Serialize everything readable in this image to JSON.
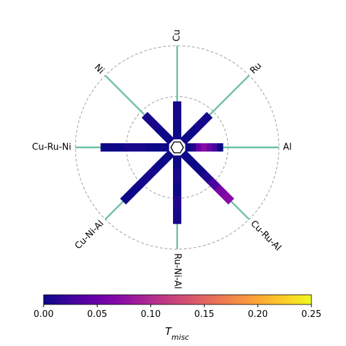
{
  "chart_data": {
    "type": "radial-bar",
    "axes": [
      {
        "label": "Cu",
        "angle_deg": 90,
        "bar_extent": 0.45,
        "tmisc": [
          0.0,
          0.005
        ]
      },
      {
        "label": "Ru",
        "angle_deg": 45,
        "bar_extent": 0.45,
        "tmisc": [
          0.0,
          0.005
        ]
      },
      {
        "label": "Al",
        "angle_deg": 0,
        "bar_extent": 0.45,
        "tmisc": [
          0.0,
          0.01,
          0.05,
          0.07,
          0.05,
          0.03,
          0.0
        ]
      },
      {
        "label": "Cu-Ru-Al",
        "angle_deg": -45,
        "bar_extent": 0.75,
        "tmisc": [
          0.0,
          0.0,
          0.0,
          0.01,
          0.03,
          0.06,
          0.07
        ]
      },
      {
        "label": "Ru-Ni-Al",
        "angle_deg": -90,
        "bar_extent": 0.75,
        "tmisc": [
          0.0,
          0.005,
          0.0,
          0.01,
          0.005
        ]
      },
      {
        "label": "Cu-Ni-Al",
        "angle_deg": -135,
        "bar_extent": 0.75,
        "tmisc": [
          0.0,
          0.005,
          0.0
        ]
      },
      {
        "label": "Cu-Ru-Ni",
        "angle_deg": 180,
        "bar_extent": 0.75,
        "tmisc": [
          0.0,
          0.005,
          0.0
        ]
      },
      {
        "label": "Ni",
        "angle_deg": 135,
        "bar_extent": 0.45,
        "tmisc": [
          0.0,
          0.005
        ]
      }
    ],
    "rings": [
      0.5,
      1.0
    ],
    "colorbar": {
      "label_base": "T",
      "label_sub": "misc",
      "min": 0.0,
      "max": 0.25,
      "ticks": [
        "0.00",
        "0.05",
        "0.10",
        "0.15",
        "0.20",
        "0.25"
      ],
      "colormap": "plasma"
    },
    "spoke_color": "#6cbfa3",
    "ring_color": "#9e9e9e"
  }
}
